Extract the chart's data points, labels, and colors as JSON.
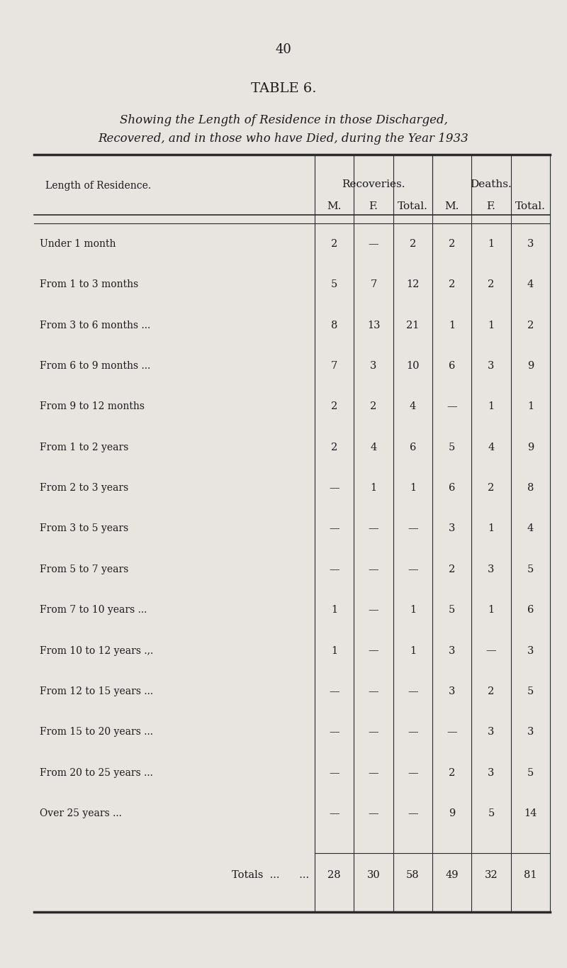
{
  "page_number": "40",
  "title": "TABLE 6.",
  "subtitle_line1": "Showing the Length of Residence in those Discharged,",
  "subtitle_line2": "Recovered, and in those who have Died, during the Year 1933",
  "col_header_group1": "Recoveries.",
  "col_header_group2": "Deaths.",
  "col_headers": [
    "M.",
    "F.",
    "Total.",
    "M.",
    "F.",
    "Total."
  ],
  "row_header": "Length of Residence.",
  "totals_label": "Totals  ...      ...",
  "rows": [
    {
      "label": "Under 1 month",
      "dots": "...     ...     ...",
      "rec_m": "2",
      "rec_f": "—",
      "rec_t": "2",
      "dea_m": "2",
      "dea_f": "1",
      "dea_t": "3"
    },
    {
      "label": "From 1 to 3 months",
      "dots": "...     ...",
      "rec_m": "5",
      "rec_f": "7",
      "rec_t": "12",
      "dea_m": "2",
      "dea_f": "2",
      "dea_t": "4"
    },
    {
      "label": "From 3 to 6 months ...",
      "dots": "...     ...",
      "rec_m": "8",
      "rec_f": "13",
      "rec_t": "21",
      "dea_m": "1",
      "dea_f": "1",
      "dea_t": "2"
    },
    {
      "label": "From 6 to 9 months ...",
      "dots": "...     ...",
      "rec_m": "7",
      "rec_f": "3",
      "rec_t": "10",
      "dea_m": "6",
      "dea_f": "3",
      "dea_t": "9"
    },
    {
      "label": "From 9 to 12 months",
      "dots": "...     ...",
      "rec_m": "2",
      "rec_f": "2",
      "rec_t": "4",
      "dea_m": "—",
      "dea_f": "1",
      "dea_t": "1"
    },
    {
      "label": "From 1 to 2 years",
      "dots": "...     ...     ...",
      "rec_m": "2",
      "rec_f": "4",
      "rec_t": "6",
      "dea_m": "5",
      "dea_f": "4",
      "dea_t": "9"
    },
    {
      "label": "From 2 to 3 years",
      "dots": "...     ...     ...",
      "rec_m": "—",
      "rec_f": "1",
      "rec_t": "1",
      "dea_m": "6",
      "dea_f": "2",
      "dea_t": "8"
    },
    {
      "label": "From 3 to 5 years",
      "dots": "...     ...     ...",
      "rec_m": "—",
      "rec_f": "—",
      "rec_t": "—",
      "dea_m": "3",
      "dea_f": "1",
      "dea_t": "4"
    },
    {
      "label": "From 5 to 7 years",
      "dots": "...     ...     ...",
      "rec_m": "—",
      "rec_f": "—",
      "rec_t": "—",
      "dea_m": "2",
      "dea_f": "3",
      "dea_t": "5"
    },
    {
      "label": "From 7 to 10 years ...",
      "dots": "...     ...",
      "rec_m": "1",
      "rec_f": "—",
      "rec_t": "1",
      "dea_m": "5",
      "dea_f": "1",
      "dea_t": "6"
    },
    {
      "label": "From 10 to 12 years .,.",
      "dots": "...     ...",
      "rec_m": "1",
      "rec_f": "—",
      "rec_t": "1",
      "dea_m": "3",
      "dea_f": "—",
      "dea_t": "3"
    },
    {
      "label": "From 12 to 15 years ...",
      "dots": "...     ...",
      "rec_m": "—",
      "rec_f": "—",
      "rec_t": "—",
      "dea_m": "3",
      "dea_f": "2",
      "dea_t": "5"
    },
    {
      "label": "From 15 to 20 years ...",
      "dots": "...     ...",
      "rec_m": "—",
      "rec_f": "—",
      "rec_t": "—",
      "dea_m": "—",
      "dea_f": "3",
      "dea_t": "3"
    },
    {
      "label": "From 20 to 25 years ...",
      "dots": "...     ...",
      "rec_m": "—",
      "rec_f": "—",
      "rec_t": "—",
      "dea_m": "2",
      "dea_f": "3",
      "dea_t": "5"
    },
    {
      "label": "Over 25 years ...",
      "dots": "...     ...     ...",
      "rec_m": "—",
      "rec_f": "—",
      "rec_t": "—",
      "dea_m": "9",
      "dea_f": "5",
      "dea_t": "14"
    }
  ],
  "totals": {
    "rec_m": "28",
    "rec_f": "30",
    "rec_t": "58",
    "dea_m": "49",
    "dea_f": "32",
    "dea_t": "81"
  },
  "bg_color": "#e8e4e0",
  "text_color": "#1a1a1a",
  "line_color": "#2a2a2a"
}
